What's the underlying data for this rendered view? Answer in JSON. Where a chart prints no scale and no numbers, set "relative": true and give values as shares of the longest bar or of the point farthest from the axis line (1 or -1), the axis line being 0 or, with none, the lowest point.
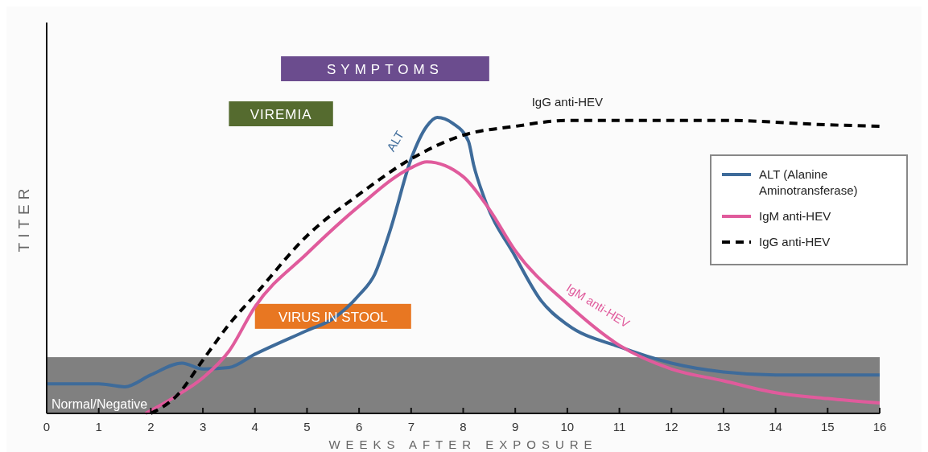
{
  "chart_data": {
    "type": "line",
    "relative": true,
    "xlabel": "WEEKS AFTER EXPOSURE",
    "ylabel": "TITER",
    "xlim": [
      0,
      16
    ],
    "xticks": [
      0,
      1,
      2,
      3,
      4,
      5,
      6,
      7,
      8,
      9,
      10,
      11,
      12,
      13,
      14,
      15,
      16
    ],
    "grid": false,
    "legend": "right",
    "series": [
      {
        "name": "ALT (Alanine Aminotransferase)",
        "color": "#3e6b9a",
        "line_style": "solid",
        "x": [
          0,
          1,
          1.5,
          2,
          2.6,
          3,
          3.5,
          4,
          5,
          5.5,
          6,
          6.3,
          6.6,
          7,
          7.3,
          7.5,
          7.8,
          8.1,
          8.2,
          8.4,
          9,
          9.5,
          10,
          11,
          12,
          13,
          14,
          15,
          16
        ],
        "values": [
          0.1,
          0.1,
          0.09,
          0.13,
          0.17,
          0.15,
          0.155,
          0.2,
          0.28,
          0.32,
          0.4,
          0.47,
          0.62,
          0.86,
          0.97,
          1,
          0.98,
          0.92,
          0.84,
          0.73,
          0.53,
          0.38,
          0.3,
          0.225,
          0.17,
          0.14,
          0.13,
          0.13,
          0.13
        ]
      },
      {
        "name": "IgM anti-HEV",
        "color": "#e05b9c",
        "line_style": "solid",
        "x": [
          1.9,
          2.5,
          3,
          3.5,
          4,
          5,
          6,
          7,
          7.3,
          8,
          8.5,
          9,
          10,
          11,
          12,
          13,
          14,
          15,
          16
        ],
        "values": [
          0,
          0.06,
          0.12,
          0.21,
          0.36,
          0.54,
          0.7,
          0.83,
          0.85,
          0.8,
          0.69,
          0.55,
          0.37,
          0.23,
          0.15,
          0.11,
          0.07,
          0.05,
          0.035
        ]
      },
      {
        "name": "IgG anti-HEV",
        "color": "#000000",
        "line_style": "dashed",
        "x": [
          2,
          2.5,
          3,
          3.5,
          4,
          5,
          6,
          7,
          8,
          9,
          10,
          11,
          13,
          15,
          16
        ],
        "values": [
          0,
          0.06,
          0.18,
          0.3,
          0.4,
          0.6,
          0.74,
          0.86,
          0.94,
          0.97,
          0.99,
          0.99,
          0.99,
          0.975,
          0.97
        ]
      }
    ],
    "bands": [
      {
        "axis": "y",
        "from": 0,
        "to": 0.19,
        "label": "Normal/Negative",
        "color": "#808080"
      }
    ],
    "annotations": [
      "SYMPTOMS",
      "VIREMIA",
      "VIRUS IN STOOL",
      {
        "text": "ALT",
        "x": 6.85,
        "y": 0.86
      },
      {
        "text": "IgM anti-HEV",
        "x": 9.9,
        "y": 0.4
      },
      {
        "text": "IgG anti-HEV",
        "x": 10,
        "y": 0.99
      }
    ]
  }
}
